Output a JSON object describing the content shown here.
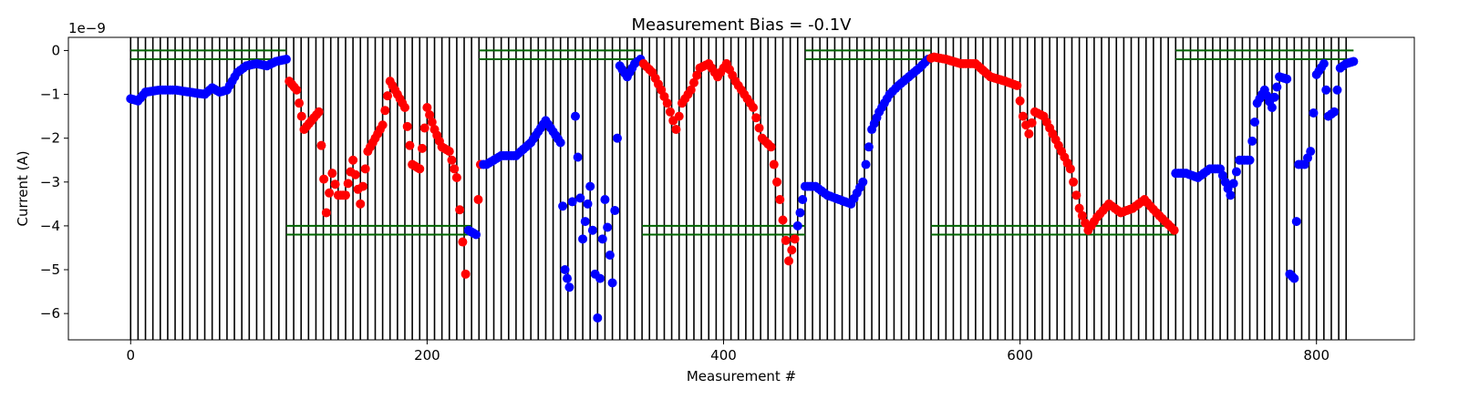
{
  "chart_data": {
    "type": "scatter",
    "title": "Measurement Bias = -0.1V",
    "xlabel": "Measurement #",
    "ylabel": "Current (A)",
    "y_offset_label": "1e−9",
    "y_unit_scale": 1e-09,
    "xlim": [
      -42,
      866
    ],
    "ylim": [
      -6.6,
      0.3
    ],
    "xticks": [
      0,
      200,
      400,
      600,
      800
    ],
    "yticks": [
      0,
      -1,
      -2,
      -3,
      -4,
      -5,
      -6
    ],
    "ytick_labels": [
      "0",
      "−1",
      "−2",
      "−3",
      "−4",
      "−5",
      "−6"
    ],
    "grid": false,
    "legend": "none",
    "colors": {
      "blue": "#0000ff",
      "red": "#ff0000",
      "vlines": "#000000",
      "guides": "#006400"
    },
    "vertical_lines": {
      "start": 0,
      "step": 5,
      "end": 820
    },
    "guide_lines": [
      {
        "x": [
          0,
          105
        ],
        "y": [
          0,
          -0.2
        ]
      },
      {
        "x": [
          105,
          230
        ],
        "y": [
          -4.0,
          -4.2
        ]
      },
      {
        "x": [
          235,
          345
        ],
        "y": [
          0,
          -0.2
        ]
      },
      {
        "x": [
          345,
          455
        ],
        "y": [
          -4.0,
          -4.2
        ]
      },
      {
        "x": [
          455,
          540
        ],
        "y": [
          0,
          -0.2
        ]
      },
      {
        "x": [
          540,
          705
        ],
        "y": [
          -4.0,
          -4.2
        ]
      },
      {
        "x": [
          705,
          825
        ],
        "y": [
          0,
          -0.2
        ]
      }
    ],
    "anchors": [
      [
        0,
        -1.1,
        "b"
      ],
      [
        5,
        -1.15,
        "b"
      ],
      [
        10,
        -0.95,
        "b"
      ],
      [
        20,
        -0.9,
        "b"
      ],
      [
        30,
        -0.9,
        "b"
      ],
      [
        40,
        -0.95,
        "b"
      ],
      [
        50,
        -1.0,
        "b"
      ],
      [
        55,
        -0.85,
        "b"
      ],
      [
        60,
        -0.95,
        "b"
      ],
      [
        65,
        -0.9,
        "b"
      ],
      [
        72,
        -0.5,
        "b"
      ],
      [
        78,
        -0.35,
        "b"
      ],
      [
        85,
        -0.3,
        "b"
      ],
      [
        92,
        -0.35,
        "b"
      ],
      [
        98,
        -0.25,
        "b"
      ],
      [
        105,
        -0.2,
        "b"
      ],
      [
        107,
        -0.7,
        "r"
      ],
      [
        112,
        -0.9,
        "r"
      ],
      [
        117,
        -1.8,
        "r"
      ],
      [
        122,
        -1.6,
        "r"
      ],
      [
        127,
        -1.4,
        "r"
      ],
      [
        132,
        -3.7,
        "r"
      ],
      [
        136,
        -2.8,
        "r"
      ],
      [
        140,
        -3.3,
        "r"
      ],
      [
        145,
        -3.3,
        "r"
      ],
      [
        150,
        -2.5,
        "r"
      ],
      [
        155,
        -3.5,
        "r"
      ],
      [
        160,
        -2.3,
        "r"
      ],
      [
        165,
        -2.0,
        "r"
      ],
      [
        170,
        -1.7,
        "r"
      ],
      [
        175,
        -0.7,
        "r"
      ],
      [
        180,
        -1.0,
        "r"
      ],
      [
        185,
        -1.3,
        "r"
      ],
      [
        190,
        -2.6,
        "r"
      ],
      [
        195,
        -2.7,
        "r"
      ],
      [
        200,
        -1.3,
        "r"
      ],
      [
        205,
        -1.8,
        "r"
      ],
      [
        210,
        -2.2,
        "r"
      ],
      [
        215,
        -2.3,
        "r"
      ],
      [
        220,
        -2.9,
        "r"
      ],
      [
        226,
        -5.1,
        "r"
      ],
      [
        228,
        -4.1,
        "b"
      ],
      [
        233,
        -4.2,
        "b"
      ],
      [
        236,
        -2.6,
        "r"
      ],
      [
        240,
        -2.6,
        "b"
      ],
      [
        250,
        -2.4,
        "b"
      ],
      [
        260,
        -2.4,
        "b"
      ],
      [
        270,
        -2.1,
        "b"
      ],
      [
        280,
        -1.6,
        "b"
      ],
      [
        290,
        -2.1,
        "b"
      ],
      [
        293,
        -5.0,
        "b"
      ],
      [
        296,
        -5.4,
        "b"
      ],
      [
        300,
        -1.5,
        "b"
      ],
      [
        305,
        -4.3,
        "b"
      ],
      [
        310,
        -3.1,
        "b"
      ],
      [
        315,
        -6.1,
        "b"
      ],
      [
        320,
        -3.4,
        "b"
      ],
      [
        325,
        -5.3,
        "b"
      ],
      [
        330,
        -0.35,
        "b"
      ],
      [
        335,
        -0.6,
        "b"
      ],
      [
        340,
        -0.3,
        "b"
      ],
      [
        344,
        -0.2,
        "b"
      ],
      [
        346,
        -0.3,
        "r"
      ],
      [
        352,
        -0.5,
        "r"
      ],
      [
        358,
        -0.9,
        "r"
      ],
      [
        362,
        -1.2,
        "r"
      ],
      [
        368,
        -1.8,
        "r"
      ],
      [
        372,
        -1.2,
        "r"
      ],
      [
        378,
        -0.9,
        "r"
      ],
      [
        384,
        -0.4,
        "r"
      ],
      [
        390,
        -0.3,
        "r"
      ],
      [
        396,
        -0.6,
        "r"
      ],
      [
        402,
        -0.3,
        "r"
      ],
      [
        408,
        -0.7,
        "r"
      ],
      [
        414,
        -1.0,
        "r"
      ],
      [
        420,
        -1.3,
        "r"
      ],
      [
        426,
        -2.0,
        "r"
      ],
      [
        432,
        -2.2,
        "r"
      ],
      [
        438,
        -3.4,
        "r"
      ],
      [
        444,
        -4.8,
        "r"
      ],
      [
        448,
        -4.3,
        "r"
      ],
      [
        450,
        -4.0,
        "b"
      ],
      [
        455,
        -3.1,
        "b"
      ],
      [
        462,
        -3.1,
        "b"
      ],
      [
        470,
        -3.3,
        "b"
      ],
      [
        478,
        -3.4,
        "b"
      ],
      [
        486,
        -3.5,
        "b"
      ],
      [
        494,
        -3.0,
        "b"
      ],
      [
        500,
        -1.8,
        "b"
      ],
      [
        505,
        -1.4,
        "b"
      ],
      [
        512,
        -1.0,
        "b"
      ],
      [
        518,
        -0.8,
        "b"
      ],
      [
        525,
        -0.6,
        "b"
      ],
      [
        532,
        -0.4,
        "b"
      ],
      [
        538,
        -0.2,
        "b"
      ],
      [
        542,
        -0.15,
        "r"
      ],
      [
        550,
        -0.2,
        "r"
      ],
      [
        560,
        -0.3,
        "r"
      ],
      [
        570,
        -0.3,
        "r"
      ],
      [
        580,
        -0.6,
        "r"
      ],
      [
        590,
        -0.7,
        "r"
      ],
      [
        598,
        -0.8,
        "r"
      ],
      [
        602,
        -1.5,
        "r"
      ],
      [
        606,
        -1.9,
        "r"
      ],
      [
        610,
        -1.4,
        "r"
      ],
      [
        616,
        -1.5,
        "r"
      ],
      [
        622,
        -1.9,
        "r"
      ],
      [
        628,
        -2.3,
        "r"
      ],
      [
        634,
        -2.7,
        "r"
      ],
      [
        640,
        -3.6,
        "r"
      ],
      [
        646,
        -4.1,
        "r"
      ],
      [
        652,
        -3.8,
        "r"
      ],
      [
        660,
        -3.5,
        "r"
      ],
      [
        668,
        -3.7,
        "r"
      ],
      [
        676,
        -3.6,
        "r"
      ],
      [
        684,
        -3.4,
        "r"
      ],
      [
        692,
        -3.7,
        "r"
      ],
      [
        698,
        -3.9,
        "r"
      ],
      [
        704,
        -4.1,
        "r"
      ],
      [
        705,
        -2.8,
        "b"
      ],
      [
        712,
        -2.8,
        "b"
      ],
      [
        720,
        -2.9,
        "b"
      ],
      [
        728,
        -2.7,
        "b"
      ],
      [
        735,
        -2.7,
        "b"
      ],
      [
        742,
        -3.3,
        "b"
      ],
      [
        748,
        -2.5,
        "b"
      ],
      [
        755,
        -2.5,
        "b"
      ],
      [
        760,
        -1.2,
        "b"
      ],
      [
        765,
        -0.9,
        "b"
      ],
      [
        770,
        -1.3,
        "b"
      ],
      [
        775,
        -0.6,
        "b"
      ],
      [
        780,
        -0.65,
        "b"
      ],
      [
        782,
        -5.1,
        "b"
      ],
      [
        785,
        -5.2,
        "b"
      ],
      [
        788,
        -2.6,
        "b"
      ],
      [
        792,
        -2.6,
        "b"
      ],
      [
        796,
        -2.3,
        "b"
      ],
      [
        800,
        -0.55,
        "b"
      ],
      [
        805,
        -0.3,
        "b"
      ],
      [
        808,
        -1.5,
        "b"
      ],
      [
        812,
        -1.4,
        "b"
      ],
      [
        816,
        -0.4,
        "b"
      ],
      [
        820,
        -0.3,
        "b"
      ],
      [
        825,
        -0.25,
        "b"
      ]
    ]
  }
}
